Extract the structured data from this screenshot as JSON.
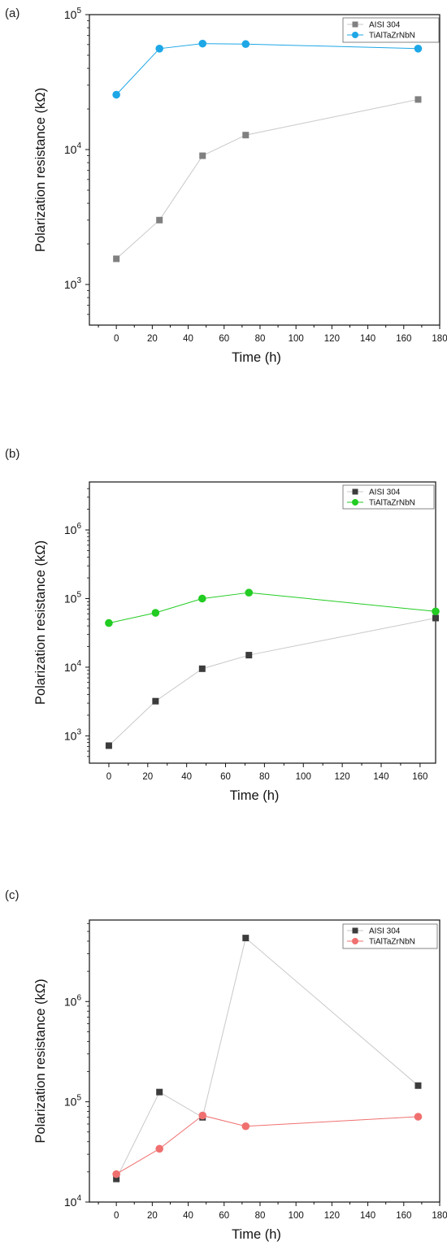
{
  "chart_data": [
    {
      "panel_label": "(a)",
      "type": "line",
      "xlabel": "Time (h)",
      "ylabel": "Polarization resistance (kΩ)",
      "xlim": [
        -15,
        180
      ],
      "ylim": [
        500,
        100000
      ],
      "yscale": "log",
      "x_ticks": [
        0,
        20,
        40,
        60,
        80,
        100,
        120,
        140,
        160,
        180
      ],
      "y_ticks": [
        {
          "base": "10",
          "exp": "3",
          "value": 1000
        },
        {
          "base": "10",
          "exp": "4",
          "value": 10000
        },
        {
          "base": "10",
          "exp": "5",
          "value": 100000
        }
      ],
      "legend_position": "top-right",
      "series": [
        {
          "name": "AISI 304",
          "marker": "square",
          "color": "#808080",
          "line_color": "#c8c8c8",
          "x": [
            0,
            24,
            48,
            72,
            168
          ],
          "y": [
            1550,
            3000,
            9000,
            12800,
            23500
          ]
        },
        {
          "name": "TiAlTaZrNbN",
          "marker": "circle",
          "color": "#1ea7e6",
          "line_color": "#1ea7e6",
          "x": [
            0,
            24,
            48,
            72,
            168
          ],
          "y": [
            25500,
            56000,
            61000,
            60500,
            56000
          ]
        }
      ]
    },
    {
      "panel_label": "(b)",
      "type": "line",
      "xlabel": "Time (h)",
      "ylabel": "Polarization resistance (kΩ)",
      "xlim": [
        -10,
        168
      ],
      "ylim": [
        400,
        5000000
      ],
      "yscale": "log",
      "x_ticks": [
        0,
        20,
        40,
        60,
        80,
        100,
        120,
        140,
        160
      ],
      "y_ticks": [
        {
          "base": "10",
          "exp": "3",
          "value": 1000
        },
        {
          "base": "10",
          "exp": "4",
          "value": 10000
        },
        {
          "base": "10",
          "exp": "5",
          "value": 100000
        },
        {
          "base": "10",
          "exp": "6",
          "value": 1000000
        }
      ],
      "legend_position": "top-right",
      "series": [
        {
          "name": "AISI 304",
          "marker": "square",
          "color": "#3c3c3c",
          "line_color": "#c8c8c8",
          "x": [
            0,
            24,
            48,
            72,
            168
          ],
          "y": [
            720,
            3200,
            9500,
            15000,
            52000
          ]
        },
        {
          "name": "TiAlTaZrNbN",
          "marker": "circle",
          "color": "#22cc22",
          "line_color": "#22cc22",
          "x": [
            0,
            24,
            48,
            72,
            168
          ],
          "y": [
            44000,
            62000,
            100000,
            122000,
            65000
          ]
        }
      ]
    },
    {
      "panel_label": "(c)",
      "type": "line",
      "xlabel": "Time (h)",
      "ylabel": "Polarization resistance (kΩ)",
      "xlim": [
        -15,
        180
      ],
      "ylim": [
        10000,
        6500000
      ],
      "yscale": "log",
      "x_ticks": [
        0,
        20,
        40,
        60,
        80,
        100,
        120,
        140,
        160,
        180
      ],
      "y_ticks": [
        {
          "base": "10",
          "exp": "4",
          "value": 10000
        },
        {
          "base": "10",
          "exp": "5",
          "value": 100000
        },
        {
          "base": "10",
          "exp": "6",
          "value": 1000000
        }
      ],
      "legend_position": "top-right",
      "series": [
        {
          "name": "AISI 304",
          "marker": "square",
          "color": "#3c3c3c",
          "line_color": "#c8c8c8",
          "x": [
            0,
            24,
            48,
            72,
            168
          ],
          "y": [
            17000,
            125000,
            70000,
            4300000,
            145000
          ]
        },
        {
          "name": "TiAlTaZrNbN",
          "marker": "circle",
          "color": "#f07070",
          "line_color": "#f07070",
          "x": [
            0,
            24,
            48,
            72,
            168
          ],
          "y": [
            19000,
            34000,
            73000,
            57000,
            71000
          ]
        }
      ]
    }
  ]
}
